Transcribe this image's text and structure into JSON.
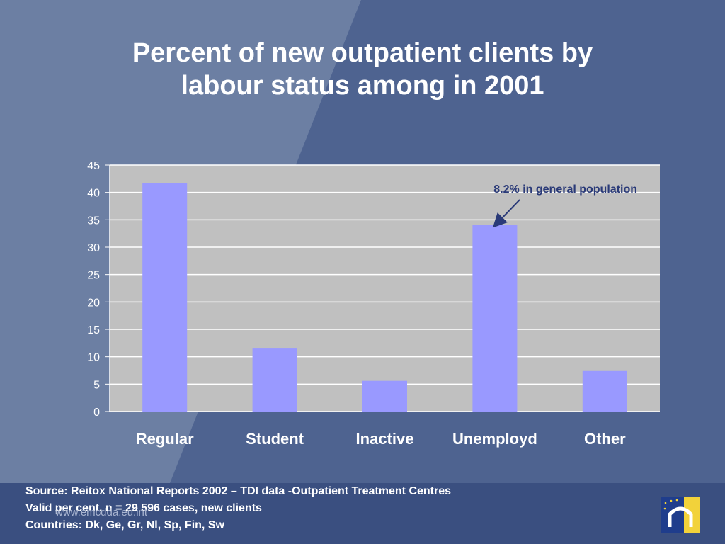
{
  "slide": {
    "title_lines": [
      "Percent of new outpatient clients by",
      "labour status among in 2001"
    ],
    "footer": {
      "lines": [
        "Source: Reitox National Reports 2002 – TDI data -Outpatient Treatment Centres",
        "Valid per cent, n = 29 596  cases, new clients",
        "Countries: Dk, Ge, Gr, Nl, Sp, Fin, Sw"
      ],
      "website": "www.emcdda.eu.int"
    },
    "logo": {
      "icon": "emcdda-logo-icon",
      "colors": {
        "blue": "#1f3d8c",
        "yellow": "#f2d23a"
      }
    },
    "colors": {
      "background": "#4e6390",
      "footer": "#3a4f80",
      "plot_area": "#c0c0c0",
      "bar": "#9999ff",
      "annotation": "#2a3a78"
    }
  },
  "chart_data": {
    "type": "bar",
    "title": "Percent of new outpatient clients by labour status among in 2001",
    "categories": [
      "Regular",
      "Student",
      "Inactive",
      "Unemployd",
      "Other"
    ],
    "values": [
      41.7,
      11.5,
      5.6,
      34.1,
      7.4
    ],
    "ylim": [
      0,
      45
    ],
    "yticks": [
      0,
      5,
      10,
      15,
      20,
      25,
      30,
      35,
      40,
      45
    ],
    "grid": true,
    "annotation": {
      "text": "8.2% in general population",
      "target_category": "Unemployd"
    }
  }
}
